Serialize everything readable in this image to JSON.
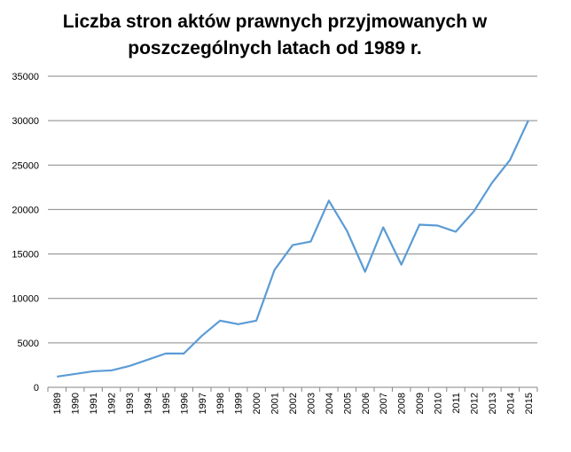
{
  "chart_data": {
    "type": "line",
    "title": "Liczba stron aktów prawnych przyjmowanych w poszczególnych latach od 1989 r.",
    "categories": [
      "1989",
      "1990",
      "1991",
      "1992",
      "1993",
      "1994",
      "1995",
      "1996",
      "1997",
      "1998",
      "1999",
      "2000",
      "2001",
      "2002",
      "2003",
      "2004",
      "2005",
      "2006",
      "2007",
      "2008",
      "2009",
      "2010",
      "2011",
      "2012",
      "2013",
      "2014",
      "2015"
    ],
    "values": [
      1200,
      1500,
      1800,
      1900,
      2400,
      3100,
      3800,
      3800,
      5800,
      7500,
      7100,
      7500,
      13200,
      16000,
      16400,
      21000,
      17600,
      13000,
      18000,
      13800,
      18300,
      18200,
      17500,
      19800,
      23000,
      25600,
      30000
    ],
    "color": "#5b9bd5",
    "ylim": [
      0,
      35000
    ],
    "yticks": [
      0,
      5000,
      10000,
      15000,
      20000,
      25000,
      30000,
      35000
    ],
    "grid": true
  }
}
